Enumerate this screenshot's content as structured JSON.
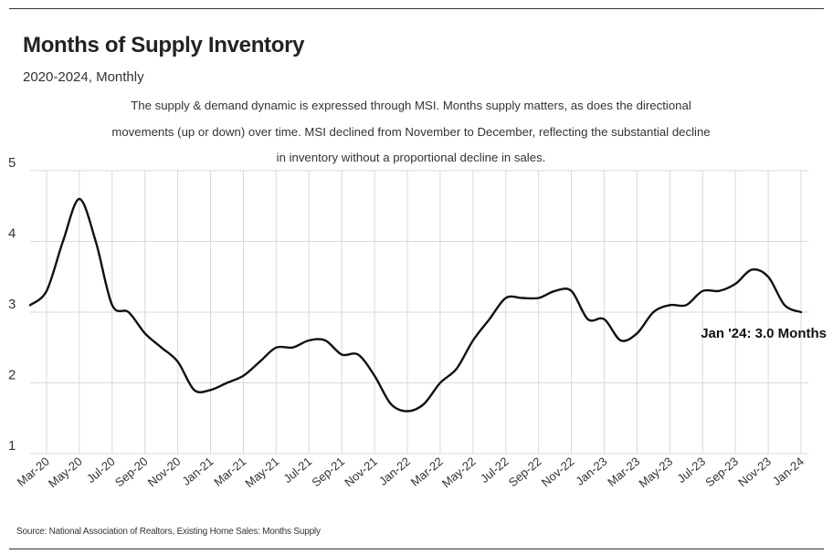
{
  "header": {
    "title": "Months of Supply Inventory",
    "subtitle": "2020-2024, Monthly",
    "description": "The supply & demand dynamic is expressed through MSI. Months supply matters, as does the directional movements (up or down) over time. MSI declined from November to December, reflecting the substantial decline in inventory without a proportional decline in sales."
  },
  "footer": {
    "source": "Source: National Association of Realtors, Existing Home Sales: Months Supply"
  },
  "chart_data": {
    "type": "line",
    "ylim": [
      1,
      5
    ],
    "yticks": [
      "1",
      "2",
      "3",
      "4",
      "5"
    ],
    "x": [
      "Feb-20",
      "Mar-20",
      "Apr-20",
      "May-20",
      "Jun-20",
      "Jul-20",
      "Aug-20",
      "Sep-20",
      "Oct-20",
      "Nov-20",
      "Dec-20",
      "Jan-21",
      "Feb-21",
      "Mar-21",
      "Apr-21",
      "May-21",
      "Jun-21",
      "Jul-21",
      "Aug-21",
      "Sep-21",
      "Oct-21",
      "Nov-21",
      "Dec-21",
      "Jan-22",
      "Feb-22",
      "Mar-22",
      "Apr-22",
      "May-22",
      "Jun-22",
      "Jul-22",
      "Aug-22",
      "Sep-22",
      "Oct-22",
      "Nov-22",
      "Dec-22",
      "Jan-23",
      "Feb-23",
      "Mar-23",
      "Apr-23",
      "May-23",
      "Jun-23",
      "Jul-23",
      "Aug-23",
      "Sep-23",
      "Oct-23",
      "Nov-23",
      "Dec-23",
      "Jan-24"
    ],
    "xtick_labels": [
      "Mar-20",
      "May-20",
      "Jul-20",
      "Sep-20",
      "Nov-20",
      "Jan-21",
      "Mar-21",
      "May-21",
      "Jul-21",
      "Sep-21",
      "Nov-21",
      "Jan-22",
      "Mar-22",
      "May-22",
      "Jul-22",
      "Sep-22",
      "Nov-22",
      "Jan-23",
      "Mar-23",
      "May-23",
      "Jul-23",
      "Sep-23",
      "Nov-23",
      "Jan-24"
    ],
    "series": [
      {
        "values": [
          3.1,
          3.3,
          4.0,
          4.6,
          4.0,
          3.1,
          3.0,
          2.7,
          2.5,
          2.3,
          1.9,
          1.9,
          2.0,
          2.1,
          2.3,
          2.5,
          2.5,
          2.6,
          2.6,
          2.4,
          2.4,
          2.1,
          1.7,
          1.6,
          1.7,
          2.0,
          2.2,
          2.6,
          2.9,
          3.2,
          3.2,
          3.2,
          3.3,
          3.3,
          2.9,
          2.9,
          2.6,
          2.7,
          3.0,
          3.1,
          3.1,
          3.3,
          3.3,
          3.4,
          3.6,
          3.5,
          3.1,
          3.0
        ],
        "color": "#111111"
      }
    ],
    "annotation": "Jan '24: 3.0 Months",
    "grid": true,
    "legend": "none"
  }
}
